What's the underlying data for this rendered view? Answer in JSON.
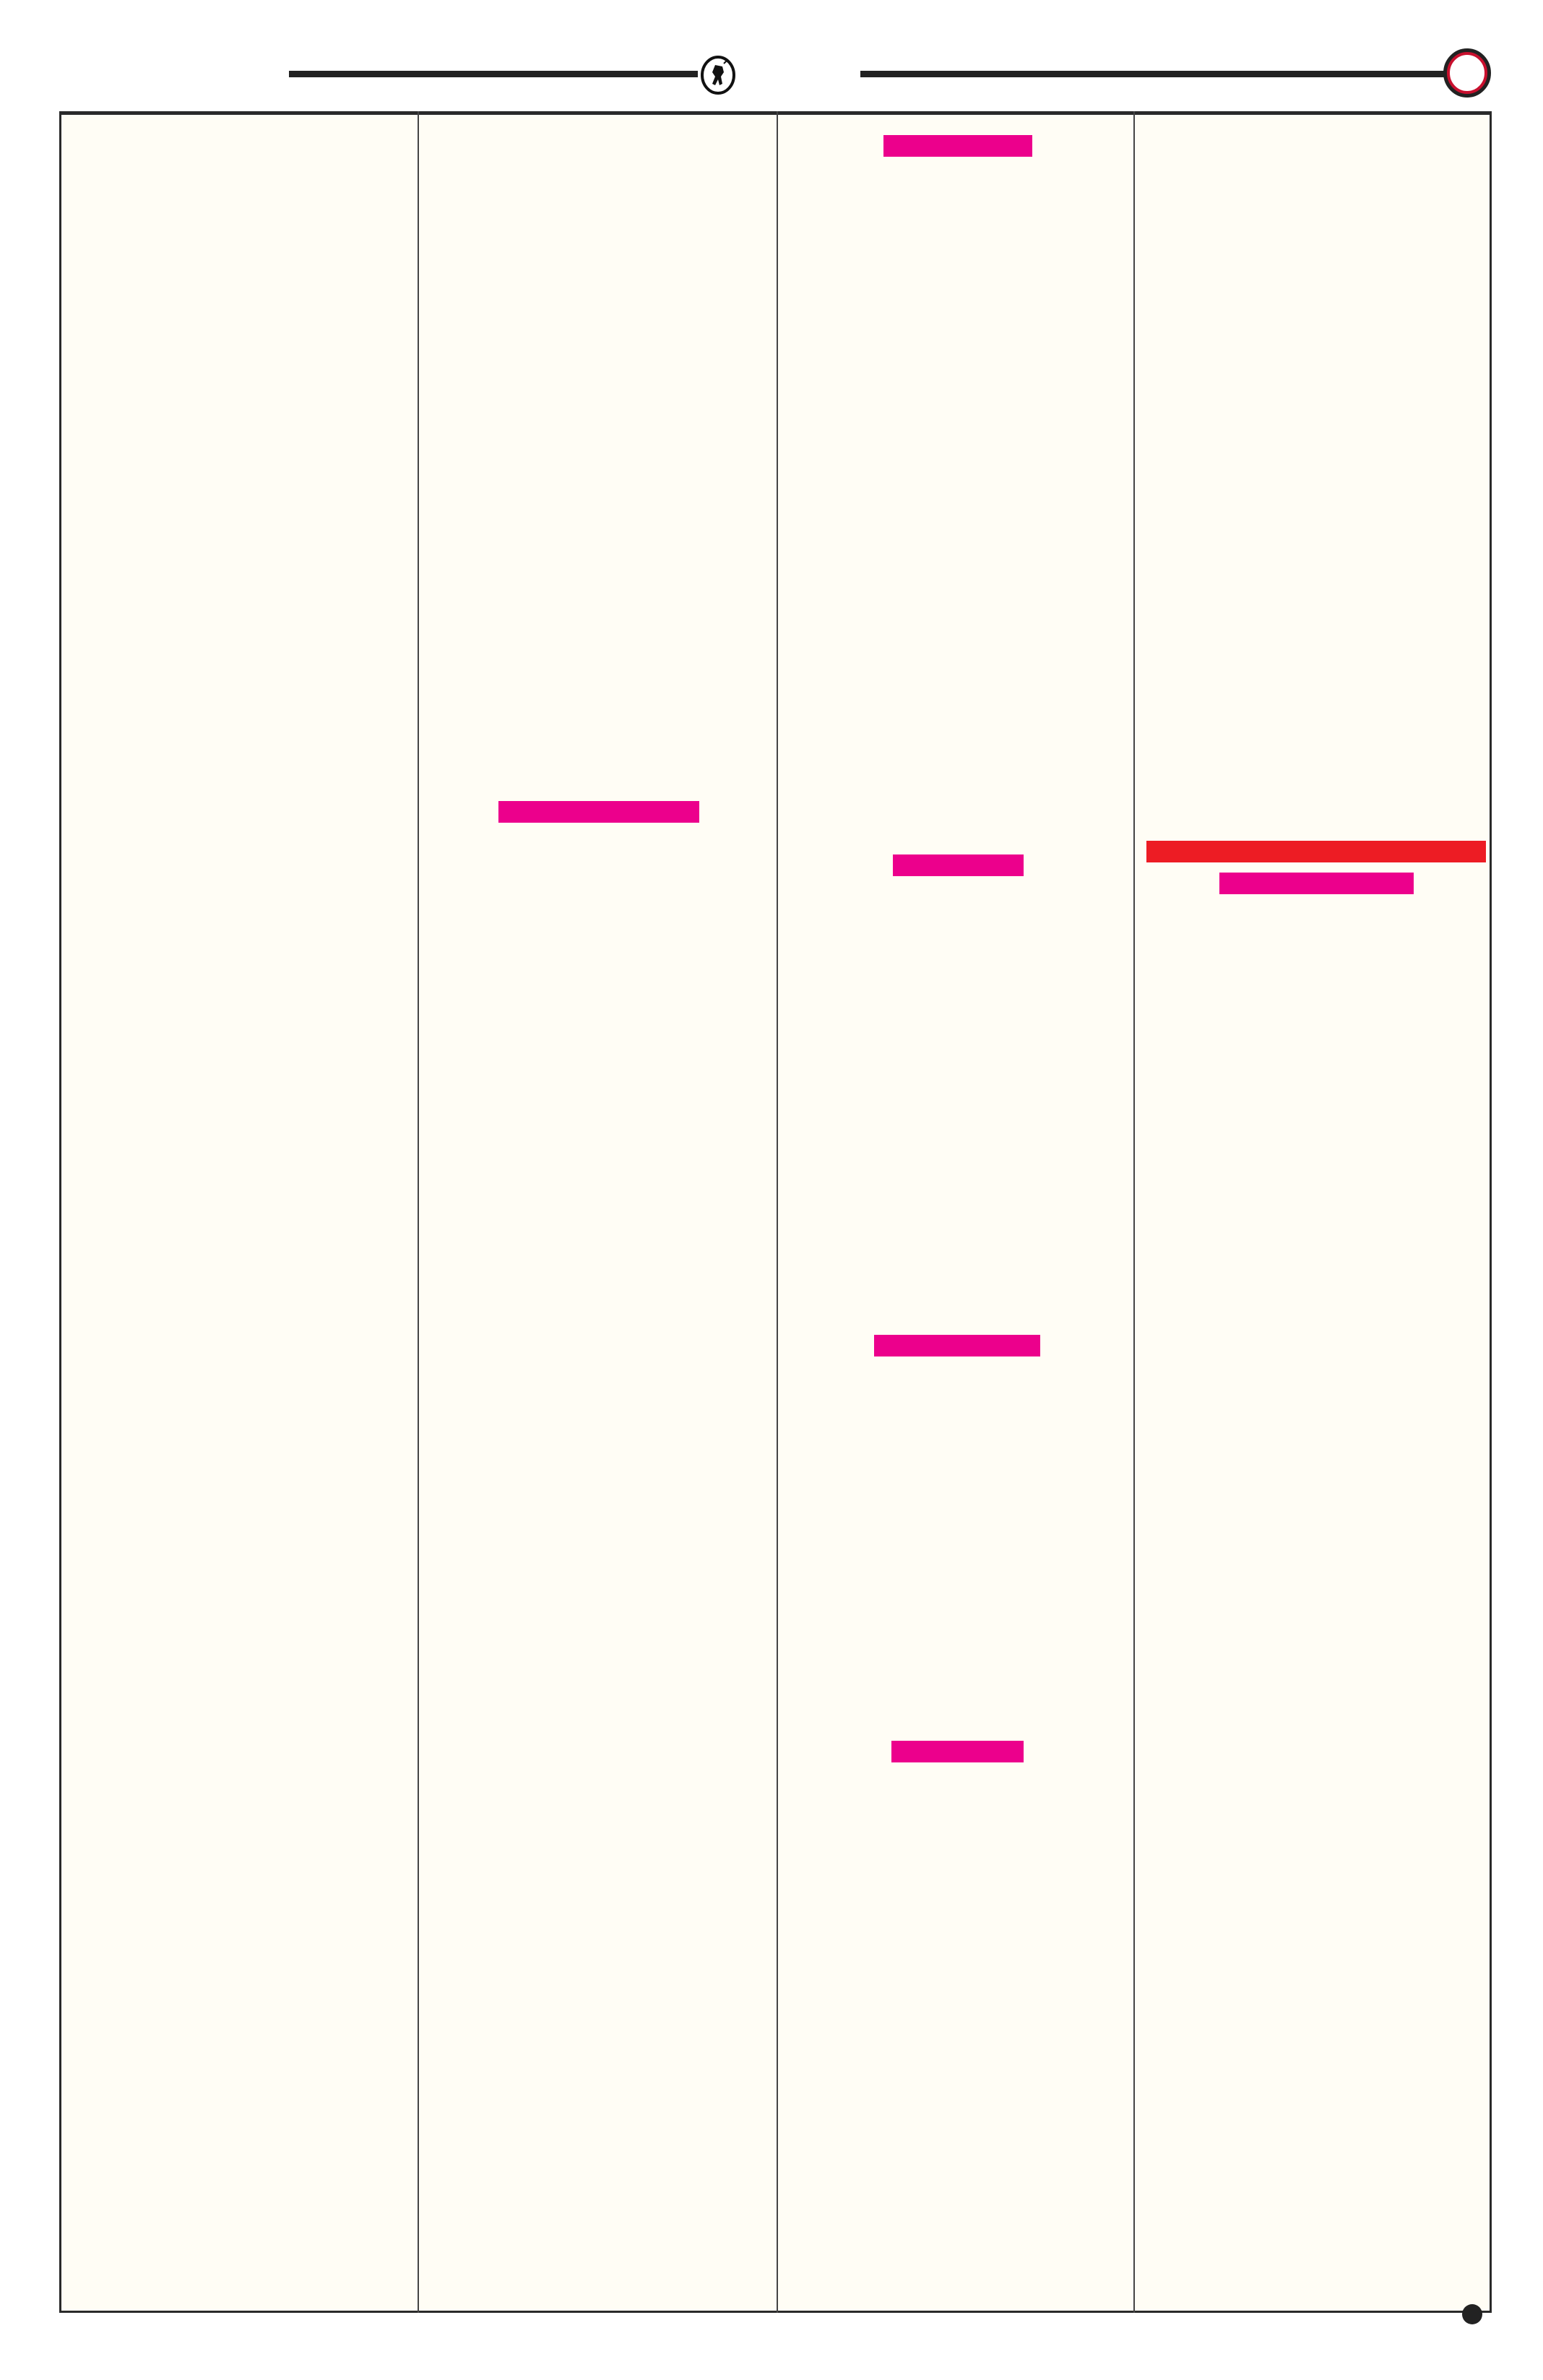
{
  "colors": {
    "page_background": "#ffffff",
    "column_background": "#fffdf5",
    "magenta_bar": "#ec008c",
    "red_bar": "#ed1c24",
    "header_circle": "#c8102e",
    "rule": "#222222"
  },
  "header": {
    "left_emblem_icon": "running-figure-emblem-icon",
    "right_marker_icon": "red-ring-icon"
  },
  "columns": [
    {
      "bars": []
    },
    {
      "bars": [
        {
          "color": "magenta"
        }
      ]
    },
    {
      "bars": [
        {
          "color": "magenta"
        },
        {
          "color": "magenta"
        },
        {
          "color": "magenta"
        },
        {
          "color": "magenta"
        }
      ]
    },
    {
      "bars": [
        {
          "color": "red"
        },
        {
          "color": "magenta"
        }
      ]
    }
  ],
  "footer": {
    "marker_icon": "filled-circle-icon"
  }
}
